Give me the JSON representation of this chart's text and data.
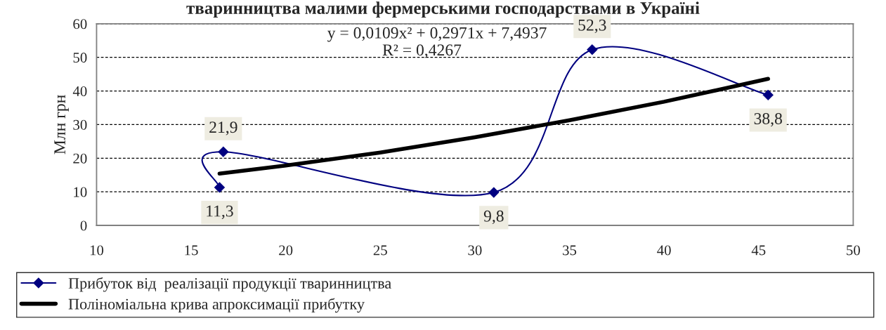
{
  "chart_data": {
    "type": "line",
    "title": "тваринництва малими фермерськими господарствами в Україні",
    "ylabel": "Млн грн",
    "xlim": [
      10,
      50
    ],
    "xticks": [
      10,
      15,
      20,
      25,
      30,
      35,
      40,
      45,
      50
    ],
    "ylim": [
      0,
      60
    ],
    "yticks": [
      0,
      10,
      20,
      30,
      40,
      50,
      60
    ],
    "grid": "y",
    "legend": "bottom",
    "annotations": [
      "y = 0,0109x² + 0,2971x + 7,4937",
      "R² = 0,4267"
    ],
    "series": [
      {
        "name": "Прибуток від  реалізації продукції тваринництва",
        "color": "#000080",
        "marker": "diamond",
        "x": [
          16.5,
          16.7,
          31.0,
          36.2,
          45.5
        ],
        "values": [
          11.3,
          21.9,
          9.8,
          52.3,
          38.8
        ],
        "value_labels": [
          "11,3",
          "21,9",
          "9,8",
          "52,3",
          "38,8"
        ]
      },
      {
        "name": "Поліноміальна крива апроксимації прибутку",
        "color": "#000000",
        "marker": "none",
        "x": [
          16.5,
          20,
          25,
          30,
          35,
          40,
          45.5
        ],
        "values": [
          15.4,
          17.8,
          21.7,
          26.2,
          31.3,
          36.8,
          43.6
        ]
      }
    ]
  }
}
